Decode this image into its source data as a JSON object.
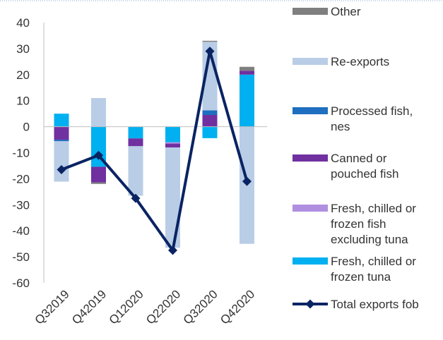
{
  "chart_data": {
    "type": "bar",
    "stacked": true,
    "categories": [
      "Q32019",
      "Q42019",
      "Q12020",
      "Q22020",
      "Q32020",
      "Q42020"
    ],
    "ylim": [
      -60,
      40
    ],
    "yticks": [
      40,
      30,
      20,
      10,
      0,
      -10,
      -20,
      -30,
      -40,
      -50,
      -60
    ],
    "grid": false,
    "legend_position": "right",
    "series": [
      {
        "name": "Other",
        "color": "#7f7f7f",
        "kind": "bar",
        "values": [
          0,
          -0.6,
          0,
          0,
          0.4,
          1.5
        ]
      },
      {
        "name": "Re-exports",
        "color": "#b9cde6",
        "kind": "bar",
        "values": [
          -15.5,
          11,
          -19,
          -38.5,
          26.3,
          -45
        ]
      },
      {
        "name": "Processed fish, nes",
        "color": "#1e6fbf",
        "kind": "bar",
        "values": [
          -0.6,
          0,
          0,
          0,
          1.8,
          0
        ]
      },
      {
        "name": "Canned or pouched fish",
        "color": "#7030a0",
        "kind": "bar",
        "values": [
          -5,
          -6,
          -3,
          -1.5,
          4.5,
          1.5
        ]
      },
      {
        "name": "Fresh, chilled or frozen fish excluding tuna",
        "color": "#b08fe0",
        "kind": "bar",
        "values": [
          0,
          0,
          0,
          -0.5,
          0,
          0
        ]
      },
      {
        "name": "Fresh, chilled or frozen tuna",
        "color": "#00b0f0",
        "kind": "bar",
        "values": [
          5,
          -15.4,
          -4.5,
          -6,
          -4.4,
          20
        ]
      },
      {
        "name": "Total exports fob",
        "color": "#0a2463",
        "kind": "line",
        "values": [
          -16.5,
          -11,
          -27.5,
          -47.5,
          29,
          -21
        ]
      }
    ]
  },
  "legend": {
    "items": [
      {
        "lines": [
          "Other"
        ]
      },
      {
        "lines": [
          "Re-exports"
        ]
      },
      {
        "lines": [
          "Processed fish,",
          "nes"
        ]
      },
      {
        "lines": [
          "Canned or",
          "pouched fish"
        ]
      },
      {
        "lines": [
          "Fresh, chilled or",
          "frozen fish",
          "excluding tuna"
        ]
      },
      {
        "lines": [
          "Fresh, chilled or",
          "frozen tuna"
        ]
      },
      {
        "lines": [
          "Total exports fob"
        ]
      }
    ]
  }
}
